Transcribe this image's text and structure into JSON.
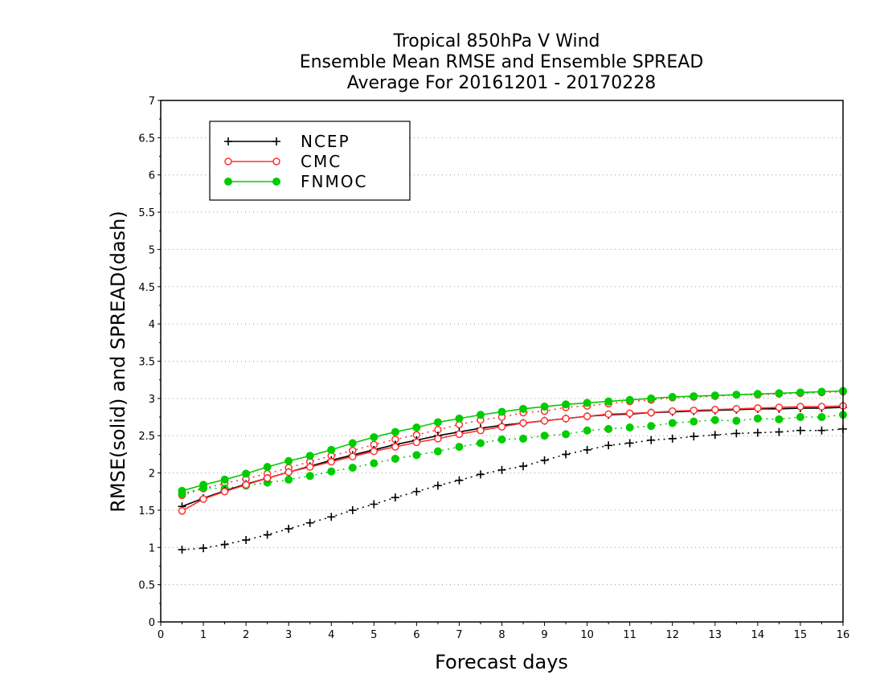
{
  "chart_data": {
    "type": "line",
    "title_lines": [
      "Tropical 850hPa V Wind",
      "Ensemble Mean RMSE and Ensemble SPREAD",
      "Average For 20161201 - 20170228"
    ],
    "xlabel": "Forecast days",
    "ylabel": "RMSE(solid) and SPREAD(dash)",
    "xlim": [
      0,
      16
    ],
    "ylim": [
      0,
      7
    ],
    "x_ticks": [
      "0",
      "1",
      "2",
      "3",
      "4",
      "5",
      "6",
      "7",
      "8",
      "9",
      "10",
      "11",
      "12",
      "13",
      "14",
      "15",
      "16"
    ],
    "y_ticks": [
      "0",
      "0.5",
      "1",
      "1.5",
      "2",
      "2.5",
      "3",
      "3.5",
      "4",
      "4.5",
      "5",
      "5.5",
      "6",
      "6.5",
      "7"
    ],
    "grid": "horizontal dotted",
    "legend_position": "top-left",
    "x": [
      0.5,
      1,
      1.5,
      2,
      2.5,
      3,
      3.5,
      4,
      4.5,
      5,
      5.5,
      6,
      6.5,
      7,
      7.5,
      8,
      8.5,
      9,
      9.5,
      10,
      10.5,
      11,
      11.5,
      12,
      12.5,
      13,
      13.5,
      14,
      14.5,
      15,
      15.5,
      16
    ],
    "series": [
      {
        "name": "NCEP",
        "color": "#000000",
        "marker": "plus",
        "rmse": [
          1.55,
          1.66,
          1.76,
          1.85,
          1.93,
          2.01,
          2.09,
          2.17,
          2.24,
          2.31,
          2.38,
          2.44,
          2.5,
          2.55,
          2.6,
          2.64,
          2.67,
          2.7,
          2.73,
          2.76,
          2.78,
          2.79,
          2.81,
          2.82,
          2.83,
          2.84,
          2.85,
          2.86,
          2.86,
          2.87,
          2.87,
          2.88
        ],
        "spread": [
          0.97,
          0.99,
          1.04,
          1.1,
          1.17,
          1.25,
          1.33,
          1.41,
          1.5,
          1.58,
          1.67,
          1.75,
          1.83,
          1.9,
          1.98,
          2.04,
          2.09,
          2.17,
          2.25,
          2.31,
          2.37,
          2.4,
          2.44,
          2.46,
          2.49,
          2.51,
          2.53,
          2.54,
          2.55,
          2.57,
          2.57,
          2.59
        ]
      },
      {
        "name": "CMC",
        "color": "#ff3030",
        "marker": "open-circle",
        "rmse": [
          1.49,
          1.65,
          1.75,
          1.84,
          1.93,
          2.01,
          2.08,
          2.15,
          2.22,
          2.29,
          2.35,
          2.41,
          2.46,
          2.52,
          2.57,
          2.62,
          2.67,
          2.7,
          2.73,
          2.76,
          2.79,
          2.8,
          2.81,
          2.83,
          2.84,
          2.85,
          2.86,
          2.87,
          2.88,
          2.89,
          2.89,
          2.9
        ],
        "spread": [
          1.7,
          1.79,
          1.86,
          1.92,
          1.99,
          2.07,
          2.15,
          2.23,
          2.3,
          2.38,
          2.45,
          2.51,
          2.58,
          2.65,
          2.71,
          2.75,
          2.81,
          2.83,
          2.88,
          2.9,
          2.93,
          2.96,
          2.98,
          3.01,
          3.02,
          3.03,
          3.05,
          3.05,
          3.06,
          3.07,
          3.08,
          3.09
        ]
      },
      {
        "name": "FNMOC",
        "color": "#00cc00",
        "marker": "filled-circle",
        "rmse": [
          1.76,
          1.84,
          1.91,
          1.99,
          2.08,
          2.16,
          2.23,
          2.31,
          2.4,
          2.48,
          2.55,
          2.61,
          2.68,
          2.73,
          2.78,
          2.82,
          2.86,
          2.89,
          2.92,
          2.94,
          2.96,
          2.98,
          3.0,
          3.02,
          3.03,
          3.04,
          3.05,
          3.06,
          3.07,
          3.08,
          3.09,
          3.1
        ],
        "spread": [
          1.72,
          1.8,
          1.79,
          1.83,
          1.87,
          1.91,
          1.96,
          2.02,
          2.07,
          2.13,
          2.19,
          2.24,
          2.29,
          2.35,
          2.4,
          2.45,
          2.46,
          2.5,
          2.52,
          2.57,
          2.59,
          2.61,
          2.63,
          2.67,
          2.69,
          2.71,
          2.7,
          2.73,
          2.72,
          2.75,
          2.75,
          2.78
        ]
      }
    ]
  }
}
